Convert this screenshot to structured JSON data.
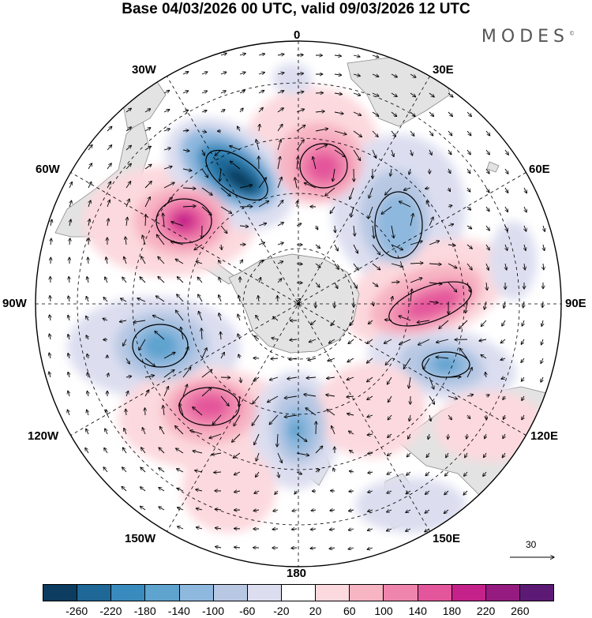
{
  "title": "Base 04/03/2026 00 UTC, valid 09/03/2026 12 UTC",
  "logo": "MODES",
  "logo_mark": "©",
  "longitude_labels": {
    "lon_0": "0",
    "lon_30e": "30E",
    "lon_60e": "60E",
    "lon_90e": "90E",
    "lon_120e": "120E",
    "lon_150e": "150E",
    "lon_180": "180",
    "lon_150w": "150W",
    "lon_120w": "120W",
    "lon_90w": "90W",
    "lon_60w": "60W",
    "lon_30w": "30W"
  },
  "reference_vector_label": "30",
  "colorbar": {
    "colors": [
      "#0c3c5f",
      "#1e6796",
      "#3a8bbd",
      "#5fa3cf",
      "#8fb8de",
      "#b8c8e3",
      "#dcdef0",
      "#ffffff",
      "#fcd9de",
      "#f7b4c3",
      "#ef85ad",
      "#e4569b",
      "#c4228a",
      "#951b80",
      "#5c1a75"
    ],
    "ticks": [
      "-260",
      "-220",
      "-180",
      "-140",
      "-100",
      "-60",
      "-20",
      "20",
      "60",
      "100",
      "140",
      "180",
      "220",
      "260"
    ]
  },
  "anomaly_centers": [
    {
      "name": "neg-center-south-atlantic",
      "value": -260
    },
    {
      "name": "pos-center-0e",
      "value": 140
    },
    {
      "name": "pos-center-60w",
      "value": 220
    },
    {
      "name": "neg-center-60e",
      "value": -100
    },
    {
      "name": "pos-center-90e",
      "value": 180
    },
    {
      "name": "neg-center-110e",
      "value": -140
    },
    {
      "name": "neg-center-100w",
      "value": -140
    },
    {
      "name": "pos-center-140w",
      "value": 180
    },
    {
      "name": "neg-center-170w",
      "value": -100
    }
  ]
}
